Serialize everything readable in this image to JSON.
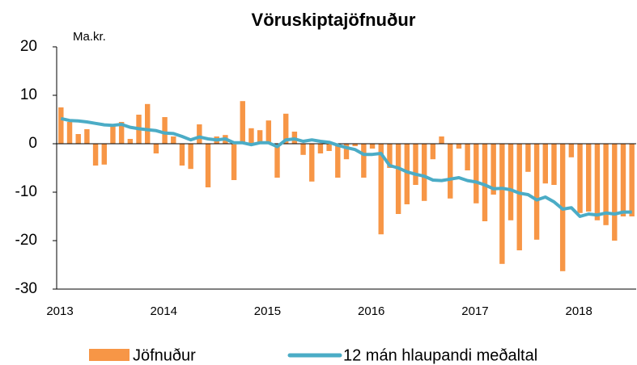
{
  "chart_data": {
    "type": "bar",
    "title": "Vöruskiptajöfnuður",
    "y_label": "Ma.kr.",
    "categories": [
      "2013",
      null,
      null,
      null,
      null,
      null,
      null,
      null,
      null,
      null,
      null,
      null,
      "2014",
      null,
      null,
      null,
      null,
      null,
      null,
      null,
      null,
      null,
      null,
      null,
      "2015",
      null,
      null,
      null,
      null,
      null,
      null,
      null,
      null,
      null,
      null,
      null,
      "2016",
      null,
      null,
      null,
      null,
      null,
      null,
      null,
      null,
      null,
      null,
      null,
      "2017",
      null,
      null,
      null,
      null,
      null,
      null,
      null,
      null,
      null,
      null,
      null,
      "2018",
      null,
      null,
      null,
      null,
      null,
      null
    ],
    "series": [
      {
        "name": "Jöfnuður",
        "type": "bar",
        "color": "#f79646",
        "values": [
          7.5,
          4.5,
          2,
          3,
          -4.5,
          -4.3,
          4,
          4.5,
          1,
          6,
          8.2,
          -2,
          5.5,
          1.5,
          -4.5,
          -5.2,
          4,
          -9,
          1.5,
          1.8,
          -7.5,
          8.8,
          3.2,
          2.8,
          4.8,
          -7,
          6.2,
          2.5,
          -2.3,
          -7.8,
          -2,
          -1.5,
          -7,
          -3.2,
          -0.5,
          -7,
          -1,
          -18.7,
          -5,
          -14.5,
          -12.5,
          -8.5,
          -11.8,
          -3.2,
          1.5,
          -11.3,
          -1,
          -5.5,
          -12.3,
          -16,
          -10.5,
          -24.8,
          -15.8,
          -22,
          -5.8,
          -19.8,
          -8.2,
          -8.5,
          -26.3,
          -2.8,
          -14.3,
          -14,
          -15.8,
          -16.8,
          -20,
          -15,
          -15
        ]
      },
      {
        "name": "12 mán hlaupandi meðaltal",
        "type": "line",
        "color": "#4bacc6",
        "values": [
          5.2,
          4.8,
          4.7,
          4.5,
          4.2,
          3.9,
          3.8,
          4.0,
          3.4,
          3.1,
          2.9,
          2.7,
          2.2,
          2.1,
          1.5,
          0.8,
          1.4,
          1.0,
          0.8,
          1.0,
          0.2,
          0.2,
          -0.2,
          0.2,
          0.2,
          -0.6,
          0.8,
          1.0,
          0.5,
          0.8,
          0.5,
          0.3,
          -0.3,
          -0.8,
          -1.2,
          -2.2,
          -2.2,
          -2.0,
          -4.5,
          -5.0,
          -5.8,
          -6.3,
          -6.7,
          -7.5,
          -7.6,
          -7.3,
          -7.0,
          -7.6,
          -7.9,
          -8.5,
          -9.3,
          -9.2,
          -9.5,
          -10.2,
          -10.5,
          -11.6,
          -11.0,
          -12.0,
          -13.5,
          -13.2,
          -15.0,
          -14.5,
          -14.7,
          -14.3,
          -14.5,
          -14.1,
          -14.1
        ]
      }
    ],
    "ylim": [
      -30,
      20
    ],
    "yticks": [
      -30,
      -20,
      -10,
      0,
      10,
      20
    ],
    "grid": false
  }
}
